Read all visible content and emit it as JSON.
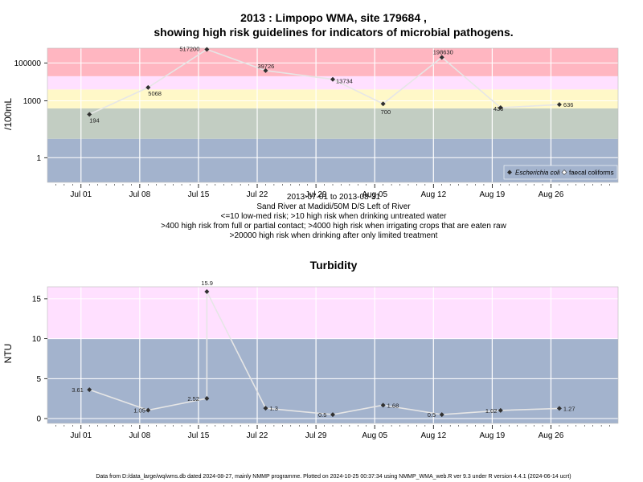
{
  "header": {
    "title_line1": "2013 : Limpopo WMA, site 179684 ,",
    "title_line2": "showing high risk guidelines for indicators of microbial pathogens."
  },
  "panel1": {
    "ylabel": "/100mL",
    "info": [
      "2013-07-01 to 2013-08-31",
      "Sand River at Madidi/50M D/S Left of River",
      "<=10 low-med risk; >10 high risk when drinking untreated water",
      ">400 high risk from full or partial contact; >4000 high risk when irrigating crops that are eaten raw",
      ">20000 high risk when drinking after only limited treatment"
    ],
    "legend": {
      "ecoli": "Escherichia coli",
      "faecal": "faecal coliforms"
    }
  },
  "panel2": {
    "title": "Turbidity",
    "ylabel": "NTU"
  },
  "footer": "Data from D:/data_large/wq/wms.db dated 2024-08-27, mainly NMMP programme. Plotted on 2024-10-25 00:37:34 using NMMP_WMA_web.R ver 9.3 under R version 4.4.1 (2024-06-14 ucrt)",
  "colors": {
    "band_red": "#ffb6c1",
    "band_pink": "#ffe0ff",
    "band_yellow": "#fff8c8",
    "band_green": "#c2cdc2",
    "band_blue": "#a3b3cd",
    "grid": "#ffffff",
    "series_line": "#e6e6e6",
    "marker": "#303030"
  },
  "chart_data": [
    {
      "type": "line",
      "title": "2013 : Limpopo WMA, site 179684 , showing high risk guidelines for indicators of microbial pathogens.",
      "ylabel": "/100mL",
      "yscale": "log",
      "ylim": [
        0.05,
        600000
      ],
      "yticks": [
        1,
        1000,
        100000
      ],
      "ytick_labels": [
        "1",
        "1000",
        "100000"
      ],
      "xlim": [
        "2013-06-27",
        "2013-09-03"
      ],
      "xticks": [
        "2013-07-01",
        "2013-07-08",
        "2013-07-15",
        "2013-07-22",
        "2013-07-29",
        "2013-08-05",
        "2013-08-12",
        "2013-08-19",
        "2013-08-26"
      ],
      "xtick_labels": [
        "Jul 01",
        "Jul 08",
        "Jul 15",
        "Jul 22",
        "Jul 29",
        "Aug 05",
        "Aug 12",
        "Aug 19",
        "Aug 26"
      ],
      "bands": [
        {
          "from": 0.05,
          "to": 10,
          "color": "#a3b3cd"
        },
        {
          "from": 10,
          "to": 400,
          "color": "#c2cdc2"
        },
        {
          "from": 400,
          "to": 4000,
          "color": "#fff8c8"
        },
        {
          "from": 4000,
          "to": 20000,
          "color": "#ffe0ff"
        },
        {
          "from": 20000,
          "to": 600000,
          "color": "#ffb6c1"
        }
      ],
      "series": [
        {
          "name": "Escherichia coli",
          "x": [
            "2013-07-02",
            "2013-07-09",
            "2013-07-16",
            "2013-07-23",
            "2013-07-31",
            "2013-08-06",
            "2013-08-13",
            "2013-08-20",
            "2013-08-27"
          ],
          "values": [
            194,
            5068,
            517200,
            39726,
            13734,
            700,
            198630,
            436,
            636
          ],
          "labels": [
            "194",
            "5068",
            "517200",
            "39726",
            "13734",
            "700",
            "198630",
            "436",
            "636"
          ]
        }
      ],
      "legend_position": "bottom-right"
    },
    {
      "type": "line",
      "title": "Turbidity",
      "ylabel": "NTU",
      "ylim": [
        -0.6,
        16.5
      ],
      "yticks": [
        0,
        5,
        10,
        15
      ],
      "ytick_labels": [
        "0",
        "5",
        "10",
        "15"
      ],
      "xlim": [
        "2013-06-27",
        "2013-09-03"
      ],
      "xticks": [
        "2013-07-01",
        "2013-07-08",
        "2013-07-15",
        "2013-07-22",
        "2013-07-29",
        "2013-08-05",
        "2013-08-12",
        "2013-08-19",
        "2013-08-26"
      ],
      "xtick_labels": [
        "Jul 01",
        "Jul 08",
        "Jul 15",
        "Jul 22",
        "Jul 29",
        "Aug 05",
        "Aug 12",
        "Aug 19",
        "Aug 26"
      ],
      "bands": [
        {
          "from": -0.6,
          "to": 10,
          "color": "#a3b3cd"
        },
        {
          "from": 10,
          "to": 16.5,
          "color": "#ffe0ff"
        }
      ],
      "series": [
        {
          "x": [
            "2013-07-02",
            "2013-07-09",
            "2013-07-16",
            "2013-07-16",
            "2013-07-23",
            "2013-07-31",
            "2013-08-06",
            "2013-08-13",
            "2013-08-20",
            "2013-08-27"
          ],
          "values": [
            3.61,
            1.05,
            2.52,
            15.9,
            1.3,
            0.5,
            1.68,
            0.5,
            1.02,
            1.27
          ],
          "labels": [
            "3.61",
            "1.05",
            "2.52",
            "15.9",
            "1.3",
            "0.5",
            "1.68",
            "0.5",
            "1.02",
            "1.27"
          ]
        }
      ]
    }
  ]
}
